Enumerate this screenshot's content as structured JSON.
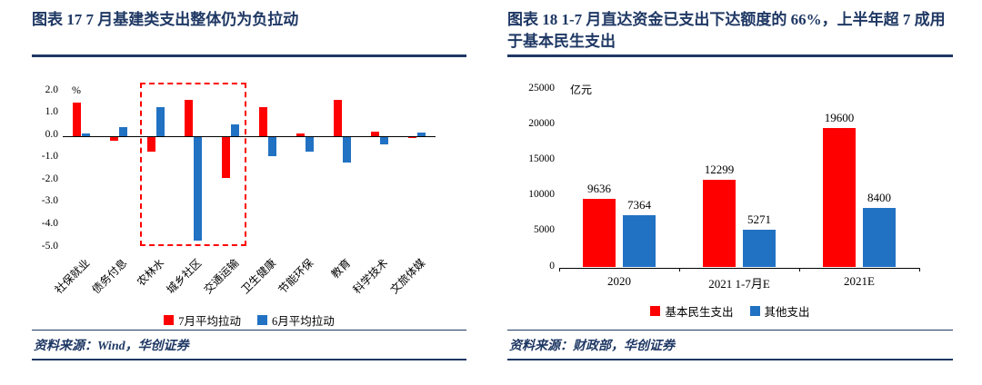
{
  "left_panel": {
    "title": "图表 17  7 月基建类支出整体仍为负拉动",
    "source": "资料来源：Wind，华创证券"
  },
  "right_panel": {
    "title": "图表 18  1-7 月直达资金已支出下达额度的 66%，上半年超 7 成用于基本民生支出",
    "source": "资料来源：财政部，华创证券"
  },
  "colors": {
    "navy": "#1f3864",
    "red": "#fe0000",
    "blue": "#2272c3"
  },
  "chart_data": [
    {
      "type": "bar",
      "title": "7月基建类支出整体仍为负拉动",
      "unit": "%",
      "categories": [
        "社保就业",
        "债务付息",
        "农林水",
        "城乡社区",
        "交通运输",
        "卫生健康",
        "节能环保",
        "教育",
        "科学技术",
        "文旅体媒"
      ],
      "series": [
        {
          "name": "7月平均拉动",
          "color": "#fe0000",
          "values": [
            1.5,
            -0.2,
            -0.7,
            1.6,
            -1.9,
            1.3,
            0.1,
            1.6,
            0.2,
            -0.1
          ]
        },
        {
          "name": "6月平均拉动",
          "color": "#2272c3",
          "values": [
            0.1,
            0.4,
            1.3,
            -4.7,
            0.5,
            -0.9,
            -0.7,
            -1.2,
            -0.4,
            0.15
          ]
        }
      ],
      "ylim": [
        -5.0,
        2.0
      ],
      "yticks": [
        {
          "v": 2,
          "label": "2.0"
        },
        {
          "v": 1,
          "label": "1.0"
        },
        {
          "v": 0,
          "label": "0.0"
        },
        {
          "v": -1,
          "label": "-1.0"
        },
        {
          "v": -2,
          "label": "-2.0"
        },
        {
          "v": -3,
          "label": "-3.0"
        },
        {
          "v": -4,
          "label": "-4.0"
        },
        {
          "v": -5,
          "label": "-5.0"
        }
      ],
      "data_labels": false,
      "highlight_box": {
        "from": 2,
        "to": 4,
        "color": "#fe0000"
      },
      "legend_position": "bottom",
      "grid": false
    },
    {
      "type": "bar",
      "title": "1-7月直达资金已支出下达额度的66%，上半年超7成用于基本民生支出",
      "unit": "亿元",
      "categories": [
        "2020",
        "2021 1-7月E",
        "2021E"
      ],
      "series": [
        {
          "name": "基本民生支出",
          "color": "#fe0000",
          "values": [
            9636,
            12299,
            19600
          ]
        },
        {
          "name": "其他支出",
          "color": "#2272c3",
          "values": [
            7364,
            5271,
            8400
          ]
        }
      ],
      "ylim": [
        0,
        25000
      ],
      "yticks": [
        {
          "v": 25000,
          "label": "25000"
        },
        {
          "v": 20000,
          "label": "20000"
        },
        {
          "v": 15000,
          "label": "15000"
        },
        {
          "v": 10000,
          "label": "10000"
        },
        {
          "v": 5000,
          "label": "5000"
        },
        {
          "v": 0,
          "label": "0"
        }
      ],
      "data_labels": true,
      "legend_position": "bottom",
      "grid": false
    }
  ]
}
